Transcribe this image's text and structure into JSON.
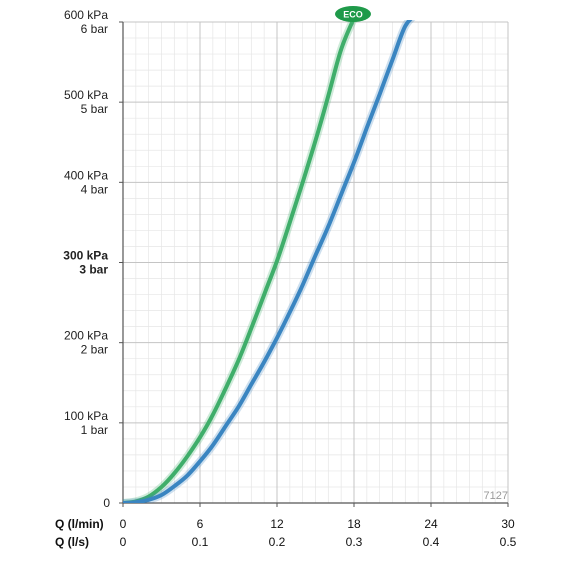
{
  "chart_data": {
    "type": "line",
    "x_axes": [
      {
        "label": "Q (l/min)",
        "ticks": [
          "0",
          "6",
          "12",
          "18",
          "24",
          "30"
        ],
        "values": [
          0,
          6,
          12,
          18,
          24,
          30
        ]
      },
      {
        "label": "Q (l/s)",
        "ticks": [
          "0",
          "0.1",
          "0.2",
          "0.3",
          "0.4",
          "0.5"
        ],
        "values": [
          0,
          0.1,
          0.2,
          0.3,
          0.4,
          0.5
        ]
      }
    ],
    "y_ticks": [
      {
        "value": 0,
        "kpa": "0",
        "bar": "",
        "bold": false
      },
      {
        "value": 100,
        "kpa": "100 kPa",
        "bar": "1 bar",
        "bold": false
      },
      {
        "value": 200,
        "kpa": "200 kPa",
        "bar": "2 bar",
        "bold": false
      },
      {
        "value": 300,
        "kpa": "300 kPa",
        "bar": "3 bar",
        "bold": true
      },
      {
        "value": 400,
        "kpa": "400 kPa",
        "bar": "4 bar",
        "bold": false
      },
      {
        "value": 500,
        "kpa": "500 kPa",
        "bar": "5 bar",
        "bold": false
      },
      {
        "value": 600,
        "kpa": "600 kPa",
        "bar": "6 bar",
        "bold": false
      }
    ],
    "xlim": [
      0,
      30
    ],
    "ylim": [
      0,
      600
    ],
    "grid": true,
    "series": [
      {
        "name": "ECO",
        "color": "#3fae6a",
        "points": [
          [
            0,
            0
          ],
          [
            1,
            2
          ],
          [
            2,
            8
          ],
          [
            3,
            20
          ],
          [
            4,
            37
          ],
          [
            5,
            58
          ],
          [
            6,
            82
          ],
          [
            7,
            110
          ],
          [
            8,
            143
          ],
          [
            9,
            178
          ],
          [
            10,
            218
          ],
          [
            11,
            260
          ],
          [
            12,
            302
          ],
          [
            13,
            350
          ],
          [
            14,
            400
          ],
          [
            15,
            452
          ],
          [
            16,
            508
          ],
          [
            17,
            566
          ],
          [
            18,
            605
          ]
        ]
      },
      {
        "series_color_note": "",
        "name": "",
        "color": "#3a85c1",
        "points": [
          [
            0,
            0
          ],
          [
            1,
            1
          ],
          [
            2,
            4
          ],
          [
            3,
            10
          ],
          [
            4,
            21
          ],
          [
            5,
            34
          ],
          [
            6,
            52
          ],
          [
            7,
            72
          ],
          [
            8,
            96
          ],
          [
            9,
            120
          ],
          [
            10,
            148
          ],
          [
            11,
            176
          ],
          [
            12,
            206
          ],
          [
            13,
            238
          ],
          [
            14,
            272
          ],
          [
            15,
            309
          ],
          [
            16,
            345
          ],
          [
            17,
            385
          ],
          [
            18,
            425
          ],
          [
            19,
            468
          ],
          [
            20,
            510
          ],
          [
            21,
            553
          ],
          [
            22,
            595
          ],
          [
            23,
            612
          ]
        ]
      }
    ],
    "annotation": "7127"
  }
}
